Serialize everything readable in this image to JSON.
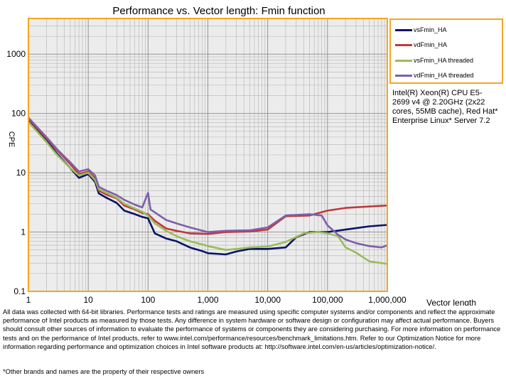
{
  "chart_data": {
    "type": "line",
    "title": "Performance vs. Vector length: Fmin function",
    "xlabel": "Vector length",
    "ylabel": "CPE",
    "xscale": "log",
    "yscale": "log",
    "xlim": [
      1,
      1000000
    ],
    "ylim": [
      0.1,
      4000
    ],
    "x_ticks": [
      1,
      10,
      100,
      1000,
      10000,
      100000,
      1000000
    ],
    "x_tick_labels": [
      "1",
      "10",
      "100",
      "1,000",
      "10,000",
      "100,000",
      "1,000,000"
    ],
    "y_ticks": [
      0.1,
      1,
      10,
      100,
      1000
    ],
    "y_tick_labels": [
      "0.1",
      "1",
      "10",
      "100",
      "1000"
    ],
    "grid": true,
    "legend_position": "top-right",
    "series": [
      {
        "name": "vsFmin_HA",
        "color": "#0a1464",
        "points": [
          [
            1,
            75
          ],
          [
            2,
            35
          ],
          [
            3,
            21
          ],
          [
            5,
            12
          ],
          [
            7,
            8.2
          ],
          [
            10,
            9.5
          ],
          [
            13,
            7
          ],
          [
            15,
            4.5
          ],
          [
            20,
            3.8
          ],
          [
            30,
            3.1
          ],
          [
            40,
            2.3
          ],
          [
            60,
            2.0
          ],
          [
            80,
            1.8
          ],
          [
            100,
            1.7
          ],
          [
            130,
            0.95
          ],
          [
            200,
            0.78
          ],
          [
            300,
            0.7
          ],
          [
            500,
            0.55
          ],
          [
            800,
            0.48
          ],
          [
            1000,
            0.44
          ],
          [
            2000,
            0.42
          ],
          [
            3000,
            0.47
          ],
          [
            5000,
            0.52
          ],
          [
            10000,
            0.52
          ],
          [
            20000,
            0.55
          ],
          [
            30000,
            0.82
          ],
          [
            50000,
            1.0
          ],
          [
            100000,
            1.0
          ],
          [
            200000,
            1.1
          ],
          [
            500000,
            1.25
          ],
          [
            1000000,
            1.32
          ]
        ]
      },
      {
        "name": "vdFmin_HA",
        "color": "#c0393b",
        "points": [
          [
            1,
            82
          ],
          [
            2,
            38
          ],
          [
            3,
            24
          ],
          [
            5,
            14
          ],
          [
            7,
            9.5
          ],
          [
            10,
            10.5
          ],
          [
            13,
            8
          ],
          [
            15,
            5
          ],
          [
            20,
            4.3
          ],
          [
            30,
            3.7
          ],
          [
            40,
            2.8
          ],
          [
            60,
            2.4
          ],
          [
            80,
            2.1
          ],
          [
            100,
            2.0
          ],
          [
            130,
            1.55
          ],
          [
            200,
            1.15
          ],
          [
            300,
            1.05
          ],
          [
            500,
            0.95
          ],
          [
            1000,
            0.93
          ],
          [
            2000,
            1.0
          ],
          [
            5000,
            1.02
          ],
          [
            10000,
            1.1
          ],
          [
            20000,
            1.85
          ],
          [
            50000,
            1.9
          ],
          [
            100000,
            2.3
          ],
          [
            200000,
            2.55
          ],
          [
            500000,
            2.7
          ],
          [
            1000000,
            2.8
          ]
        ]
      },
      {
        "name": "vsFmin_HA threaded",
        "color": "#9bbb59",
        "points": [
          [
            1,
            72
          ],
          [
            2,
            33
          ],
          [
            3,
            20
          ],
          [
            5,
            12
          ],
          [
            7,
            9
          ],
          [
            10,
            10
          ],
          [
            13,
            7.5
          ],
          [
            15,
            5.3
          ],
          [
            20,
            4.6
          ],
          [
            30,
            3.8
          ],
          [
            40,
            3
          ],
          [
            60,
            2.5
          ],
          [
            80,
            2.2
          ],
          [
            100,
            1.9
          ],
          [
            130,
            1.4
          ],
          [
            200,
            1.05
          ],
          [
            300,
            0.85
          ],
          [
            500,
            0.7
          ],
          [
            800,
            0.62
          ],
          [
            1000,
            0.58
          ],
          [
            2000,
            0.5
          ],
          [
            3000,
            0.52
          ],
          [
            5000,
            0.55
          ],
          [
            10000,
            0.57
          ],
          [
            20000,
            0.68
          ],
          [
            40000,
            0.95
          ],
          [
            70000,
            1.0
          ],
          [
            100000,
            0.95
          ],
          [
            150000,
            0.85
          ],
          [
            200000,
            0.55
          ],
          [
            300000,
            0.45
          ],
          [
            500000,
            0.32
          ],
          [
            1000000,
            0.29
          ]
        ]
      },
      {
        "name": "vdFmin_HA threaded",
        "color": "#7f5fab",
        "points": [
          [
            1,
            85
          ],
          [
            2,
            40
          ],
          [
            3,
            25
          ],
          [
            5,
            15
          ],
          [
            7,
            10.5
          ],
          [
            10,
            11.5
          ],
          [
            13,
            9
          ],
          [
            15,
            5.8
          ],
          [
            20,
            5
          ],
          [
            30,
            4.2
          ],
          [
            40,
            3.5
          ],
          [
            60,
            2.9
          ],
          [
            80,
            2.6
          ],
          [
            100,
            4.6
          ],
          [
            110,
            2.4
          ],
          [
            200,
            1.6
          ],
          [
            300,
            1.4
          ],
          [
            500,
            1.2
          ],
          [
            1000,
            1.0
          ],
          [
            2000,
            1.05
          ],
          [
            5000,
            1.07
          ],
          [
            10000,
            1.2
          ],
          [
            20000,
            1.9
          ],
          [
            50000,
            2.0
          ],
          [
            80000,
            1.9
          ],
          [
            100000,
            1.3
          ],
          [
            150000,
            0.9
          ],
          [
            200000,
            0.75
          ],
          [
            300000,
            0.65
          ],
          [
            500000,
            0.58
          ],
          [
            800000,
            0.55
          ],
          [
            1000000,
            0.6
          ]
        ]
      }
    ]
  },
  "cpu_note": "Intel(R) Xeon(R) CPU E5-2699 v4 @ 2.20GHz (2x22 cores, 55MB cache), Red Hat* Enterprise Linux* Server 7.2",
  "disclaimer": "All data was collected with 64-bit libraries. Performance tests and ratings are measured using specific computer systems and/or components and reflect the approximate performance of Intel products as measured by those tests. Any difference in system hardware or software design or configuration may affect actual performance. Buyers should consult other sources of information to evaluate the performance of systems or components they are considering purchasing. For more information on performance tests and on the performance of Intel products, refer to www.intel.com/performance/resources/benchmark_limitations.htm. Refer to our Optimization Notice for more information regarding performance and optimization choices in Intel software products at: http://software.intel.com/en-us/articles/optimization-notice/.",
  "footnote": "*Other brands and names are the property of their respective owners"
}
